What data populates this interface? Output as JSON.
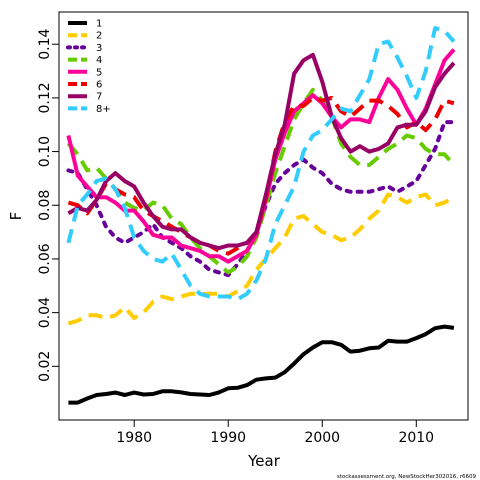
{
  "chart_data": {
    "type": "line",
    "xlabel": "Year",
    "ylabel": "F",
    "xlim": [
      1972,
      2015.5
    ],
    "ylim": [
      0,
      0.152
    ],
    "xticks": [
      1980,
      1990,
      2000,
      2010
    ],
    "yticks": [
      0.02,
      0.04,
      0.06,
      0.08,
      0.1,
      0.12,
      0.14
    ],
    "ytick_labels": [
      "0.02",
      "0.04",
      "0.06",
      "0.08",
      "0.10",
      "0.12",
      "0.14"
    ],
    "legend_position": "top-left",
    "grid": false,
    "series": [
      {
        "name": "1",
        "color": "#000000",
        "dash": "solid",
        "x": [
          1973,
          1974,
          1975,
          1976,
          1977,
          1978,
          1979,
          1980,
          1981,
          1982,
          1983,
          1984,
          1985,
          1986,
          1987,
          1988,
          1989,
          1990,
          1991,
          1992,
          1993,
          1994,
          1995,
          1996,
          1997,
          1998,
          1999,
          2000,
          2001,
          2002,
          2003,
          2004,
          2005,
          2006,
          2007,
          2008,
          2009,
          2010,
          2011,
          2012,
          2013,
          2014
        ],
        "values": [
          0.0065,
          0.0065,
          0.008,
          0.0093,
          0.0097,
          0.0102,
          0.0093,
          0.0102,
          0.0095,
          0.0097,
          0.0107,
          0.0107,
          0.0103,
          0.0097,
          0.0095,
          0.0093,
          0.0103,
          0.0118,
          0.012,
          0.013,
          0.015,
          0.0155,
          0.0158,
          0.0178,
          0.021,
          0.0245,
          0.027,
          0.029,
          0.029,
          0.028,
          0.0255,
          0.0258,
          0.0267,
          0.027,
          0.0295,
          0.0292,
          0.0292,
          0.0305,
          0.032,
          0.0342,
          0.0348,
          0.0343
        ]
      },
      {
        "name": "2",
        "color": "#ffcc00",
        "dash": "dashed",
        "x": [
          1973,
          1974,
          1975,
          1976,
          1977,
          1978,
          1979,
          1980,
          1981,
          1982,
          1983,
          1984,
          1985,
          1986,
          1987,
          1988,
          1989,
          1990,
          1991,
          1992,
          1993,
          1994,
          1995,
          1996,
          1997,
          1998,
          1999,
          2000,
          2001,
          2002,
          2003,
          2004,
          2005,
          2006,
          2007,
          2008,
          2009,
          2010,
          2011,
          2012,
          2013,
          2014
        ],
        "values": [
          0.036,
          0.037,
          0.039,
          0.039,
          0.038,
          0.039,
          0.042,
          0.038,
          0.04,
          0.044,
          0.046,
          0.045,
          0.046,
          0.047,
          0.047,
          0.047,
          0.047,
          0.046,
          0.048,
          0.05,
          0.056,
          0.06,
          0.064,
          0.068,
          0.075,
          0.076,
          0.073,
          0.07,
          0.069,
          0.067,
          0.068,
          0.071,
          0.075,
          0.078,
          0.084,
          0.083,
          0.081,
          0.083,
          0.084,
          0.08,
          0.081,
          0.083
        ]
      },
      {
        "name": "3",
        "color": "#660099",
        "dash": "dotted",
        "x": [
          1973,
          1974,
          1975,
          1976,
          1977,
          1978,
          1979,
          1980,
          1981,
          1982,
          1983,
          1984,
          1985,
          1986,
          1987,
          1988,
          1989,
          1990,
          1991,
          1992,
          1993,
          1994,
          1995,
          1996,
          1997,
          1998,
          1999,
          2000,
          2001,
          2002,
          2003,
          2004,
          2005,
          2006,
          2007,
          2008,
          2009,
          2010,
          2011,
          2012,
          2013,
          2014
        ],
        "values": [
          0.093,
          0.092,
          0.086,
          0.08,
          0.072,
          0.068,
          0.066,
          0.068,
          0.07,
          0.073,
          0.068,
          0.066,
          0.064,
          0.061,
          0.059,
          0.056,
          0.055,
          0.054,
          0.058,
          0.063,
          0.07,
          0.08,
          0.088,
          0.092,
          0.095,
          0.097,
          0.094,
          0.092,
          0.088,
          0.086,
          0.085,
          0.085,
          0.085,
          0.086,
          0.087,
          0.085,
          0.087,
          0.089,
          0.095,
          0.101,
          0.111,
          0.111
        ]
      },
      {
        "name": "4",
        "color": "#66cc00",
        "dash": "dashed",
        "x": [
          1973,
          1974,
          1975,
          1976,
          1977,
          1978,
          1979,
          1980,
          1981,
          1982,
          1983,
          1984,
          1985,
          1986,
          1987,
          1988,
          1989,
          1990,
          1991,
          1992,
          1993,
          1994,
          1995,
          1996,
          1997,
          1998,
          1999,
          2000,
          2001,
          2002,
          2003,
          2004,
          2005,
          2006,
          2007,
          2008,
          2009,
          2010,
          2011,
          2012,
          2013,
          2014
        ],
        "values": [
          0.103,
          0.099,
          0.093,
          0.094,
          0.09,
          0.086,
          0.081,
          0.079,
          0.078,
          0.081,
          0.08,
          0.075,
          0.073,
          0.068,
          0.064,
          0.061,
          0.058,
          0.055,
          0.057,
          0.061,
          0.068,
          0.08,
          0.092,
          0.102,
          0.112,
          0.118,
          0.123,
          0.119,
          0.113,
          0.103,
          0.098,
          0.095,
          0.095,
          0.098,
          0.101,
          0.103,
          0.106,
          0.105,
          0.101,
          0.099,
          0.099,
          0.095
        ]
      },
      {
        "name": "5",
        "color": "#ff0099",
        "dash": "solid",
        "x": [
          1973,
          1974,
          1975,
          1976,
          1977,
          1978,
          1979,
          1980,
          1981,
          1982,
          1983,
          1984,
          1985,
          1986,
          1987,
          1988,
          1989,
          1990,
          1991,
          1992,
          1993,
          1994,
          1995,
          1996,
          1997,
          1998,
          1999,
          2000,
          2001,
          2002,
          2003,
          2004,
          2005,
          2006,
          2007,
          2008,
          2009,
          2010,
          2011,
          2012,
          2013,
          2014
        ],
        "values": [
          0.106,
          0.091,
          0.087,
          0.083,
          0.083,
          0.081,
          0.078,
          0.078,
          0.074,
          0.069,
          0.068,
          0.068,
          0.065,
          0.064,
          0.063,
          0.061,
          0.061,
          0.059,
          0.061,
          0.063,
          0.069,
          0.082,
          0.097,
          0.107,
          0.115,
          0.118,
          0.121,
          0.118,
          0.113,
          0.109,
          0.112,
          0.112,
          0.111,
          0.12,
          0.127,
          0.123,
          0.116,
          0.11,
          0.116,
          0.125,
          0.134,
          0.138
        ]
      },
      {
        "name": "6",
        "color": "#ee0000",
        "dash": "dashed",
        "x": [
          1973,
          1974,
          1975,
          1976,
          1977,
          1978,
          1979,
          1980,
          1981,
          1982,
          1983,
          1984,
          1985,
          1986,
          1987,
          1988,
          1989,
          1990,
          1991,
          1992,
          1993,
          1994,
          1995,
          1996,
          1997,
          1998,
          1999,
          2000,
          2001,
          2002,
          2003,
          2004,
          2005,
          2006,
          2007,
          2008,
          2009,
          2010,
          2011,
          2012,
          2013,
          2014
        ],
        "values": [
          0.081,
          0.08,
          0.077,
          0.082,
          0.088,
          0.086,
          0.084,
          0.083,
          0.078,
          0.076,
          0.074,
          0.072,
          0.07,
          0.068,
          0.066,
          0.065,
          0.063,
          0.062,
          0.064,
          0.066,
          0.07,
          0.083,
          0.1,
          0.111,
          0.117,
          0.117,
          0.12,
          0.119,
          0.12,
          0.115,
          0.113,
          0.116,
          0.119,
          0.119,
          0.117,
          0.114,
          0.109,
          0.111,
          0.108,
          0.112,
          0.119,
          0.118
        ]
      },
      {
        "name": "7",
        "color": "#990066",
        "dash": "solid",
        "x": [
          1973,
          1974,
          1975,
          1976,
          1977,
          1978,
          1979,
          1980,
          1981,
          1982,
          1983,
          1984,
          1985,
          1986,
          1987,
          1988,
          1989,
          1990,
          1991,
          1992,
          1993,
          1994,
          1995,
          1996,
          1997,
          1998,
          1999,
          2000,
          2001,
          2002,
          2003,
          2004,
          2005,
          2006,
          2007,
          2008,
          2009,
          2010,
          2011,
          2012,
          2013,
          2014
        ],
        "values": [
          0.077,
          0.079,
          0.078,
          0.082,
          0.089,
          0.092,
          0.089,
          0.087,
          0.081,
          0.076,
          0.072,
          0.071,
          0.071,
          0.068,
          0.066,
          0.065,
          0.064,
          0.065,
          0.065,
          0.066,
          0.07,
          0.084,
          0.099,
          0.11,
          0.129,
          0.134,
          0.136,
          0.126,
          0.113,
          0.105,
          0.1,
          0.102,
          0.1,
          0.101,
          0.103,
          0.109,
          0.11,
          0.11,
          0.115,
          0.124,
          0.129,
          0.133
        ]
      },
      {
        "name": "8+",
        "color": "#33ccff",
        "dash": "dashed",
        "x": [
          1973,
          1974,
          1975,
          1976,
          1977,
          1978,
          1979,
          1980,
          1981,
          1982,
          1983,
          1984,
          1985,
          1986,
          1987,
          1988,
          1989,
          1990,
          1991,
          1992,
          1993,
          1994,
          1995,
          1996,
          1997,
          1998,
          1999,
          2000,
          2001,
          2002,
          2003,
          2004,
          2005,
          2006,
          2007,
          2008,
          2009,
          2010,
          2011,
          2012,
          2013,
          2014
        ],
        "values": [
          0.066,
          0.08,
          0.084,
          0.089,
          0.09,
          0.086,
          0.079,
          0.068,
          0.063,
          0.06,
          0.059,
          0.062,
          0.056,
          0.05,
          0.047,
          0.046,
          0.046,
          0.046,
          0.045,
          0.047,
          0.052,
          0.06,
          0.073,
          0.08,
          0.087,
          0.1,
          0.106,
          0.108,
          0.112,
          0.116,
          0.115,
          0.121,
          0.127,
          0.14,
          0.141,
          0.135,
          0.128,
          0.12,
          0.13,
          0.146,
          0.145,
          0.141
        ]
      }
    ]
  },
  "footer": {
    "credit": "stockassessment.org, NewStockHer302016, r6609"
  }
}
